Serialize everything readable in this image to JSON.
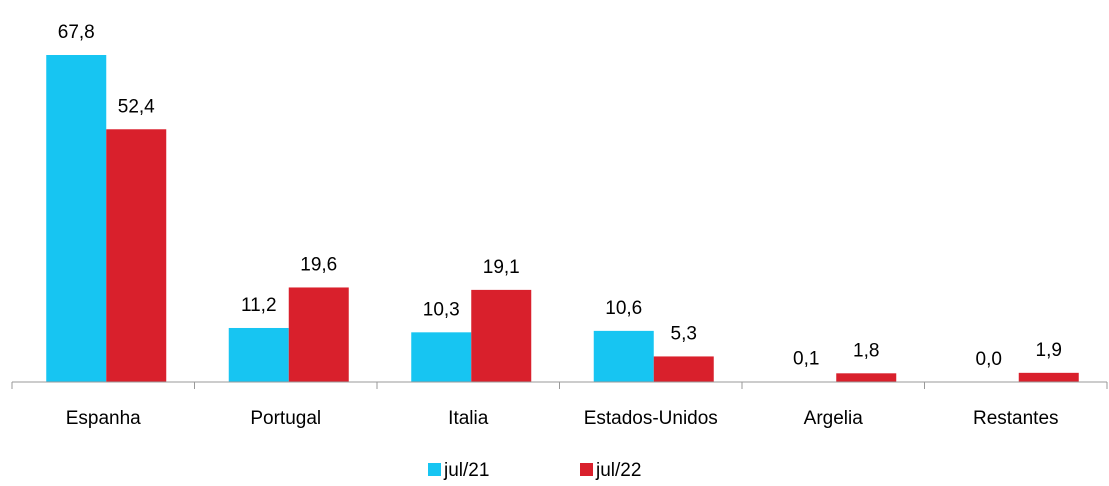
{
  "chart_data": {
    "type": "bar",
    "categories": [
      "Espanha",
      "Portugal",
      "Italia",
      "Estados-Unidos",
      "Argelia",
      "Restantes"
    ],
    "series": [
      {
        "name": "jul/21",
        "color": "#17c5f2",
        "values": [
          67.8,
          11.2,
          10.3,
          10.6,
          0.1,
          0.0
        ],
        "value_labels": [
          "67,8",
          "11,2",
          "10,3",
          "10,6",
          "0,1",
          "0,0"
        ]
      },
      {
        "name": "jul/22",
        "color": "#d9202c",
        "values": [
          52.4,
          19.6,
          19.1,
          5.3,
          1.8,
          1.9
        ],
        "value_labels": [
          "52,4",
          "19,6",
          "19,1",
          "5,3",
          "1,8",
          "1,9"
        ]
      }
    ]
  }
}
